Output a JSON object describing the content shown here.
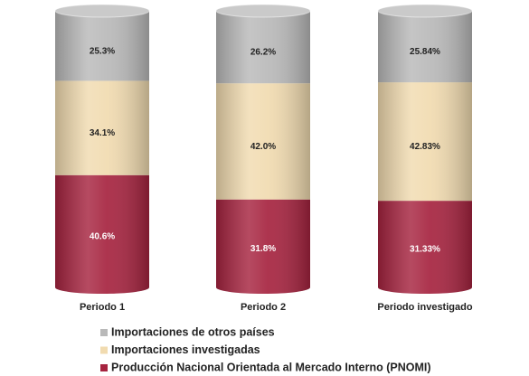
{
  "chart_data": {
    "type": "stacked-cylinder",
    "categories": [
      "Periodo 1",
      "Periodo 2",
      "Periodo investigado"
    ],
    "series": [
      {
        "name": "Producción Nacional Orientada al Mercado Interno (PNOMI)",
        "color": "#a6233f",
        "values": [
          40.6,
          31.8,
          31.33
        ],
        "value_labels": [
          "40.6%",
          "31.8%",
          "31.33%"
        ]
      },
      {
        "name": "Importaciones investigadas",
        "color": "#f1dbb0",
        "values": [
          34.1,
          42.0,
          42.83
        ],
        "value_labels": [
          "34.1%",
          "42.0%",
          "42.83%"
        ]
      },
      {
        "name": "Importaciones de otros países",
        "color": "#b9b9b9",
        "values": [
          25.3,
          26.2,
          25.84
        ],
        "value_labels": [
          "25.3%",
          "26.2%",
          "25.84%"
        ]
      }
    ]
  }
}
